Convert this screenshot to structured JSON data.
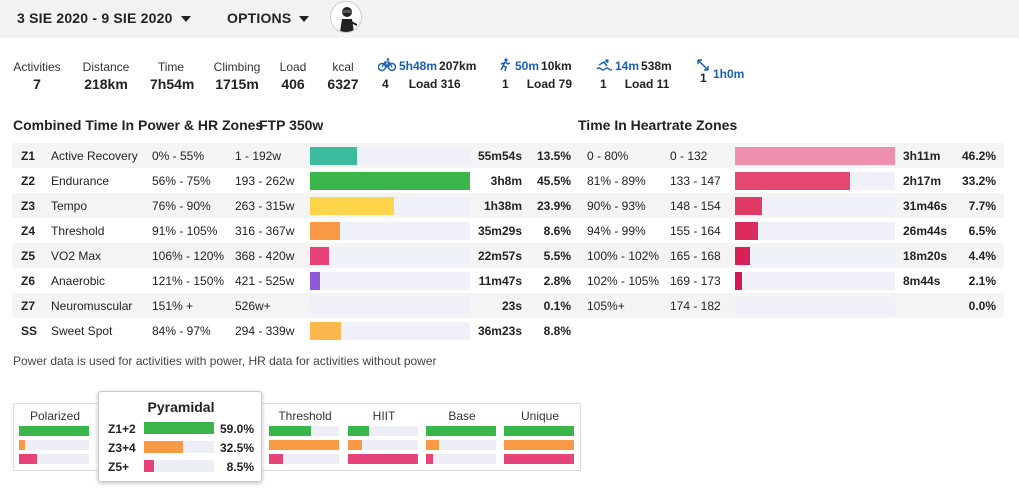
{
  "header": {
    "date_range": "3 SIE 2020 - 9 SIE 2020",
    "options_label": "OPTIONS"
  },
  "summary": [
    {
      "label": "Activities",
      "value": "7"
    },
    {
      "label": "Distance",
      "value": "218km"
    },
    {
      "label": "Time",
      "value": "7h54m"
    },
    {
      "label": "Climbing",
      "value": "1715m"
    },
    {
      "label": "Load",
      "value": "406"
    },
    {
      "label": "kcal",
      "value": "6327"
    }
  ],
  "sports": [
    {
      "icon": "bike-icon",
      "time": "5h48m",
      "distance": "207km",
      "count": "4",
      "load": "Load 316"
    },
    {
      "icon": "run-icon",
      "time": "50m",
      "distance": "10km",
      "count": "1",
      "load": "Load 79"
    },
    {
      "icon": "swim-icon",
      "time": "14m",
      "distance": "538m",
      "count": "1",
      "load": "Load 11"
    },
    {
      "icon": "stretch-icon",
      "time": "1h0m",
      "distance": "",
      "count": "1",
      "load": ""
    }
  ],
  "power_section": {
    "title": "Combined Time In Power & HR Zones",
    "ftp": "FTP 350w"
  },
  "hr_section": {
    "title": "Time In Heartrate Zones"
  },
  "zones": [
    {
      "id": "Z1",
      "name": "Active Recovery",
      "pct_range": "0% - 55%",
      "watts": "1 - 192w",
      "time": "55m54s",
      "pct": "13.5%",
      "fraction": 0.135,
      "color": "#3dbb9e",
      "hr_pct_range": "0 - 80%",
      "hr_bpm": "0 - 132",
      "hr_time": "3h11m",
      "hr_pct": "46.2%",
      "hr_fraction": 0.462,
      "hr_color": "#ee8fad"
    },
    {
      "id": "Z2",
      "name": "Endurance",
      "pct_range": "56% - 75%",
      "watts": "193 - 262w",
      "time": "3h8m",
      "pct": "45.5%",
      "fraction": 0.455,
      "color": "#39b54a",
      "hr_pct_range": "81% - 89%",
      "hr_bpm": "133 - 147",
      "hr_time": "2h17m",
      "hr_pct": "33.2%",
      "hr_fraction": 0.332,
      "hr_color": "#e4476f"
    },
    {
      "id": "Z3",
      "name": "Tempo",
      "pct_range": "76% - 90%",
      "watts": "263 - 315w",
      "time": "1h38m",
      "pct": "23.9%",
      "fraction": 0.239,
      "color": "#fdd44a",
      "hr_pct_range": "90% - 93%",
      "hr_bpm": "148 - 154",
      "hr_time": "31m46s",
      "hr_pct": "7.7%",
      "hr_fraction": 0.077,
      "hr_color": "#e03a67"
    },
    {
      "id": "Z4",
      "name": "Threshold",
      "pct_range": "91% - 105%",
      "watts": "316 - 367w",
      "time": "35m29s",
      "pct": "8.6%",
      "fraction": 0.086,
      "color": "#f89a45",
      "hr_pct_range": "94% - 99%",
      "hr_bpm": "155 - 164",
      "hr_time": "26m44s",
      "hr_pct": "6.5%",
      "hr_fraction": 0.065,
      "hr_color": "#dc2b5f"
    },
    {
      "id": "Z5",
      "name": "VO2 Max",
      "pct_range": "106% - 120%",
      "watts": "368 - 420w",
      "time": "22m57s",
      "pct": "5.5%",
      "fraction": 0.055,
      "color": "#e64478",
      "hr_pct_range": "100% - 102%",
      "hr_bpm": "165 - 168",
      "hr_time": "18m20s",
      "hr_pct": "4.4%",
      "hr_fraction": 0.044,
      "hr_color": "#d82058"
    },
    {
      "id": "Z6",
      "name": "Anaerobic",
      "pct_range": "121% - 150%",
      "watts": "421 - 525w",
      "time": "11m47s",
      "pct": "2.8%",
      "fraction": 0.028,
      "color": "#8e5ad6",
      "hr_pct_range": "102% - 105%",
      "hr_bpm": "169 - 173",
      "hr_time": "8m44s",
      "hr_pct": "2.1%",
      "hr_fraction": 0.021,
      "hr_color": "#d31852"
    },
    {
      "id": "Z7",
      "name": "Neuromuscular",
      "pct_range": "151% +",
      "watts": "526w+",
      "time": "23s",
      "pct": "0.1%",
      "fraction": 0.0,
      "color": "#444444",
      "hr_pct_range": "105%+",
      "hr_bpm": "174 - 182",
      "hr_time": "",
      "hr_pct": "0.0%",
      "hr_fraction": 0.0,
      "hr_color": "#c4104a"
    },
    {
      "id": "SS",
      "name": "Sweet Spot",
      "pct_range": "84% - 97%",
      "watts": "294 - 339w",
      "time": "36m23s",
      "pct": "8.8%",
      "fraction": 0.088,
      "color": "#fbb64c",
      "hr_pct_range": "",
      "hr_bpm": "",
      "hr_time": "",
      "hr_pct": "",
      "hr_fraction": null,
      "hr_color": ""
    }
  ],
  "footnote": "Power data is used for activities with power, HR data for activities without power",
  "distributions": [
    {
      "name": "Polarized",
      "bars": [
        {
          "fraction": 1.0,
          "color": "#39b54a"
        },
        {
          "fraction": 0.08,
          "color": "#f89a45"
        },
        {
          "fraction": 0.25,
          "color": "#e64478"
        }
      ]
    },
    {
      "name": "Pyramidal",
      "bars": [
        {
          "fraction": 0.8,
          "color": "#39b54a"
        },
        {
          "fraction": 0.4,
          "color": "#f89a45"
        },
        {
          "fraction": 0.1,
          "color": "#e64478"
        }
      ]
    },
    {
      "name": "Threshold",
      "bars": [
        {
          "fraction": 0.6,
          "color": "#39b54a"
        },
        {
          "fraction": 1.0,
          "color": "#f89a45"
        },
        {
          "fraction": 0.2,
          "color": "#e64478"
        }
      ]
    },
    {
      "name": "HIIT",
      "bars": [
        {
          "fraction": 0.3,
          "color": "#39b54a"
        },
        {
          "fraction": 0.2,
          "color": "#f89a45"
        },
        {
          "fraction": 1.0,
          "color": "#e64478"
        }
      ]
    },
    {
      "name": "Base",
      "bars": [
        {
          "fraction": 1.0,
          "color": "#39b54a"
        },
        {
          "fraction": 0.18,
          "color": "#f89a45"
        },
        {
          "fraction": 0.1,
          "color": "#e64478"
        }
      ]
    },
    {
      "name": "Unique",
      "bars": [
        {
          "fraction": 1.0,
          "color": "#39b54a"
        },
        {
          "fraction": 1.0,
          "color": "#f89a45"
        },
        {
          "fraction": 1.0,
          "color": "#e64478"
        }
      ]
    }
  ],
  "popup": {
    "title": "Pyramidal",
    "rows": [
      {
        "label": "Z1+2",
        "pct": "59.0%",
        "fraction": 1.0,
        "color": "#39b54a"
      },
      {
        "label": "Z3+4",
        "pct": "32.5%",
        "fraction": 0.55,
        "color": "#f89a45"
      },
      {
        "label": "Z5+",
        "pct": "8.5%",
        "fraction": 0.14,
        "color": "#e64478"
      }
    ]
  }
}
